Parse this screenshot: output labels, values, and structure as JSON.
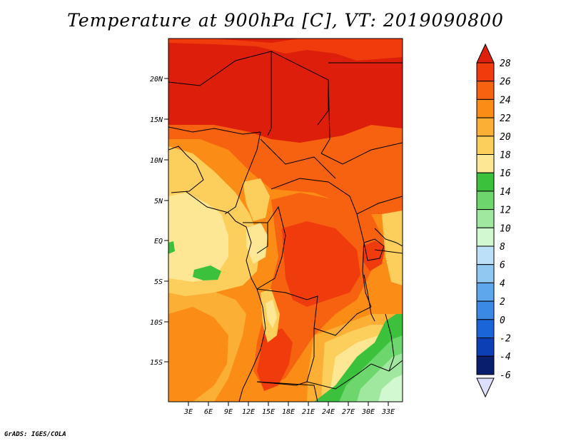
{
  "title": "Temperature at 900hPa [C], VT: 2019090800",
  "credit": "GrADS: IGES/COLA",
  "lat_ticks": [
    "20N",
    "15N",
    "10N",
    "5N",
    "EQ",
    "5S",
    "10S",
    "15S"
  ],
  "lon_ticks": [
    "3E",
    "6E",
    "9E",
    "12E",
    "15E",
    "18E",
    "21E",
    "24E",
    "27E",
    "30E",
    "33E"
  ],
  "colorbar": {
    "labels": [
      "28",
      "26",
      "24",
      "22",
      "20",
      "18",
      "16",
      "14",
      "12",
      "10",
      "8",
      "6",
      "4",
      "2",
      "0",
      "-2",
      "-4",
      "-6"
    ],
    "colors": [
      "#dc1e0a",
      "#f03c0c",
      "#f6620f",
      "#fb8c16",
      "#fbb035",
      "#fcce5c",
      "#fee794",
      "#3cc13c",
      "#6dd66d",
      "#a0e8a0",
      "#d2f8d2",
      "#bde0f9",
      "#90c8f2",
      "#5ea7ec",
      "#3a8ae3",
      "#1a66d8",
      "#0c3fb5",
      "#0a1e6e",
      "#0b0b45"
    ],
    "top_color": "#dc1e0a",
    "bottom_color": "#dde0fa"
  },
  "legend_colors": {
    "t28": "#dc1e0a",
    "t26": "#f03c0c",
    "t24": "#f6620f",
    "t22": "#fb8c16",
    "t20": "#fbb035",
    "t18": "#fcce5c",
    "t16": "#fee794",
    "t14": "#3cc13c",
    "t12": "#6dd66d",
    "t10": "#a0e8a0",
    "t8": "#d2f8d2"
  }
}
